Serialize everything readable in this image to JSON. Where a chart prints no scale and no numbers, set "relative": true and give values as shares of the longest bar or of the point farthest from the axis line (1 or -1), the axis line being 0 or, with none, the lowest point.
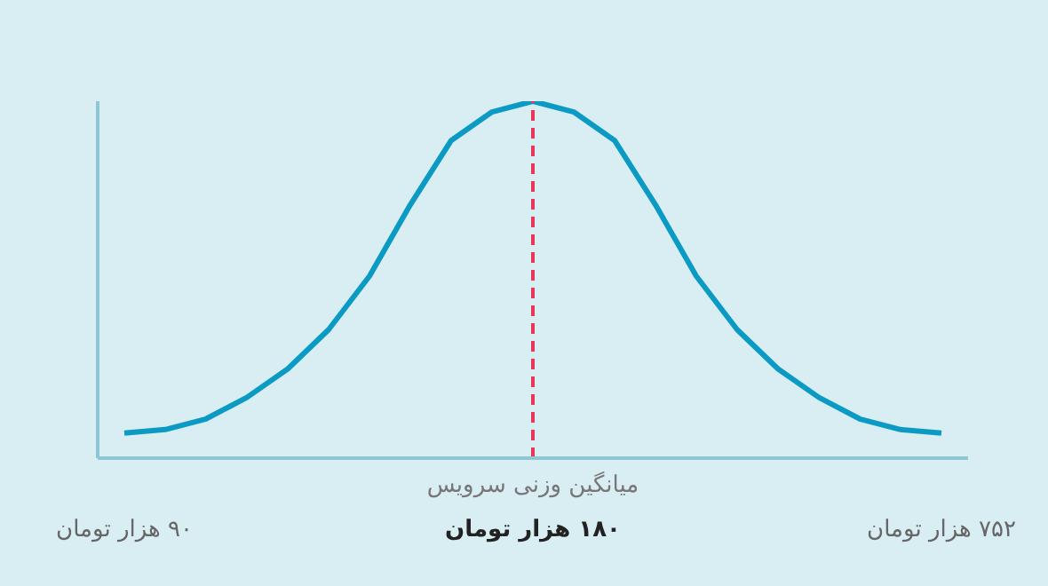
{
  "chart_data": {
    "type": "line",
    "relative": true,
    "categories": [
      "۹۰ هزار تومان",
      null,
      null,
      null,
      null,
      null,
      null,
      null,
      null,
      null,
      "۱۸۰ هزار تومان",
      null,
      null,
      null,
      null,
      null,
      null,
      null,
      null,
      null,
      "۷۵۲ هزار تومان"
    ],
    "series": [
      {
        "color": "#0a9ac4",
        "values": [
          0.07,
          0.08,
          0.11,
          0.17,
          0.25,
          0.36,
          0.51,
          0.71,
          0.89,
          0.97,
          1.0,
          0.97,
          0.89,
          0.71,
          0.51,
          0.36,
          0.25,
          0.17,
          0.11,
          0.08,
          0.07
        ]
      }
    ],
    "ref_lines": [
      {
        "axis": "x",
        "value": "۱۸۰ هزار تومان",
        "label": "میانگین وزنی سرویس",
        "color": "#e8365a",
        "line_style": "dashed"
      }
    ],
    "grid": false,
    "legend": false,
    "marker": "none",
    "line_style": "solid"
  }
}
